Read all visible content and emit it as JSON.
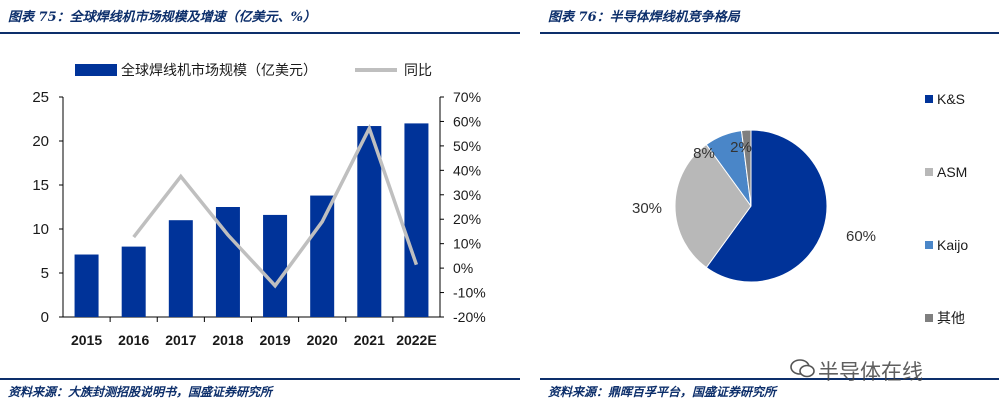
{
  "left": {
    "fig_title": "图表 75：全球焊线机市场规模及增速（亿美元、%）",
    "source": "资料来源：大族封测招股说明书，国盛证券研究所"
  },
  "right": {
    "fig_title": "图表 76：半导体焊线机竞争格局",
    "source": "资料来源：鼎晖百孚平台，国盛证券研究所"
  },
  "watermark": "半导体在线",
  "chart_data": [
    {
      "type": "bar",
      "categories": [
        "2015",
        "2016",
        "2017",
        "2018",
        "2019",
        "2020",
        "2021",
        "2022E"
      ],
      "series": [
        {
          "name": "全球焊线机市场规模（亿美元）",
          "type": "bar",
          "axis": "left",
          "color": "#003399",
          "values": [
            7.1,
            8.0,
            11.0,
            12.5,
            11.6,
            13.8,
            21.7,
            22.0
          ]
        },
        {
          "name": "同比",
          "type": "line",
          "axis": "right",
          "color": "#bfbfbf",
          "values": [
            null,
            12.7,
            37.5,
            13.6,
            -7.2,
            19.0,
            57.2,
            1.4
          ]
        }
      ],
      "ylim": [
        0,
        25
      ],
      "yticks": [
        "0",
        "5",
        "10",
        "15",
        "20",
        "25"
      ],
      "y2lim": [
        -20,
        70
      ],
      "y2ticks": [
        "-20%",
        "-10%",
        "0%",
        "10%",
        "20%",
        "30%",
        "40%",
        "50%",
        "60%",
        "70%"
      ],
      "legend": "top",
      "grid": false
    },
    {
      "type": "pie",
      "labels": [
        "K&S",
        "ASM",
        "Kaijo",
        "其他"
      ],
      "values": [
        60,
        30,
        8,
        2
      ],
      "value_labels": [
        "60%",
        "30%",
        "8%",
        "2%"
      ],
      "colors": [
        "#003399",
        "#b8b8b8",
        "#4a86c8",
        "#7f7f7f"
      ],
      "legend": "right"
    }
  ]
}
